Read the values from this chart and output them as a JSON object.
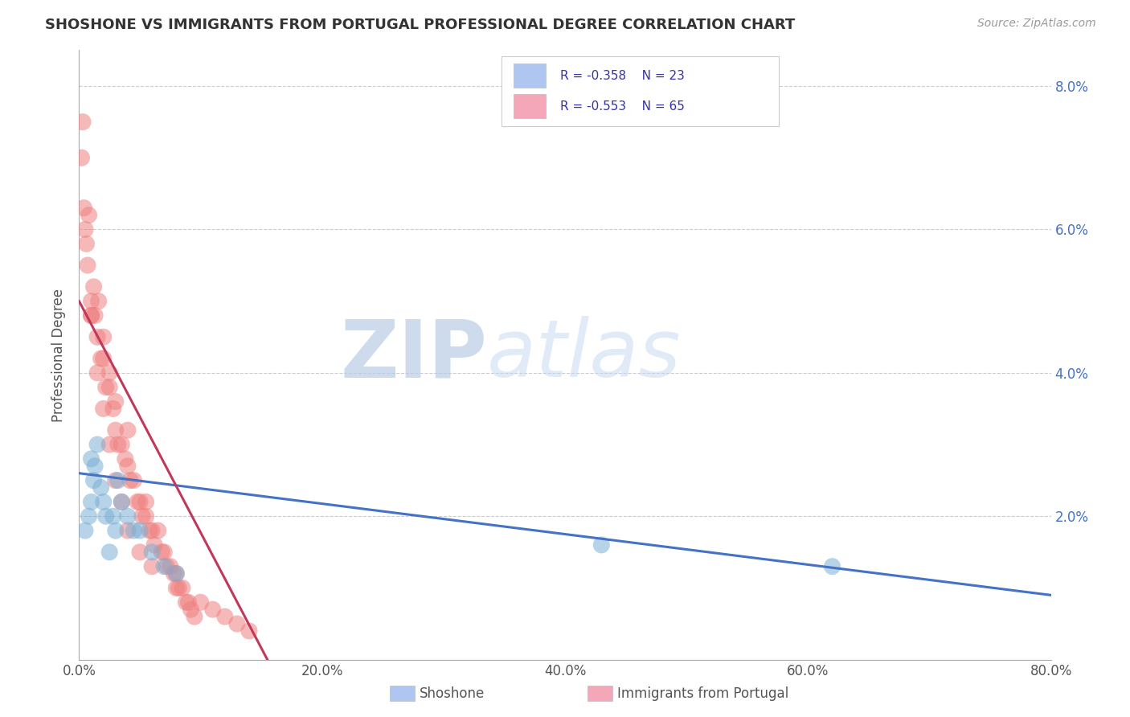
{
  "title": "SHOSHONE VS IMMIGRANTS FROM PORTUGAL PROFESSIONAL DEGREE CORRELATION CHART",
  "source": "Source: ZipAtlas.com",
  "ylabel": "Professional Degree",
  "xlim": [
    0.0,
    0.8
  ],
  "ylim": [
    0.0,
    0.085
  ],
  "xtick_labels": [
    "0.0%",
    "20.0%",
    "40.0%",
    "60.0%",
    "80.0%"
  ],
  "xtick_vals": [
    0.0,
    0.2,
    0.4,
    0.6,
    0.8
  ],
  "ytick_right_labels": [
    "8.0%",
    "6.0%",
    "4.0%",
    "2.0%",
    ""
  ],
  "ytick_vals": [
    0.0,
    0.02,
    0.04,
    0.06,
    0.08
  ],
  "legend_entry1_color": "#aec6f0",
  "legend_entry2_color": "#f4a7b9",
  "shoshone_color": "#7bafd4",
  "portugal_color": "#f08080",
  "shoshone_line_color": "#4472c4",
  "portugal_line_color": "#c0385a",
  "watermark_zip": "ZIP",
  "watermark_atlas": "atlas",
  "background_color": "#ffffff",
  "grid_color": "#cccccc",
  "shoshone_line_x0": 0.0,
  "shoshone_line_y0": 0.026,
  "shoshone_line_x1": 0.8,
  "shoshone_line_y1": 0.009,
  "portugal_line_x0": 0.0,
  "portugal_line_y0": 0.05,
  "portugal_line_x1": 0.155,
  "portugal_line_y1": 0.0,
  "shoshone_pts_x": [
    0.005,
    0.008,
    0.01,
    0.01,
    0.012,
    0.013,
    0.015,
    0.018,
    0.02,
    0.022,
    0.025,
    0.028,
    0.03,
    0.032,
    0.035,
    0.04,
    0.045,
    0.05,
    0.06,
    0.07,
    0.08,
    0.43,
    0.62
  ],
  "shoshone_pts_y": [
    0.018,
    0.02,
    0.028,
    0.022,
    0.025,
    0.027,
    0.03,
    0.024,
    0.022,
    0.02,
    0.015,
    0.02,
    0.018,
    0.025,
    0.022,
    0.02,
    0.018,
    0.018,
    0.015,
    0.013,
    0.012,
    0.016,
    0.013
  ],
  "portugal_pts_x": [
    0.002,
    0.003,
    0.004,
    0.005,
    0.006,
    0.007,
    0.008,
    0.01,
    0.01,
    0.012,
    0.013,
    0.015,
    0.016,
    0.018,
    0.02,
    0.02,
    0.022,
    0.025,
    0.025,
    0.028,
    0.03,
    0.03,
    0.032,
    0.035,
    0.038,
    0.04,
    0.04,
    0.042,
    0.045,
    0.048,
    0.05,
    0.052,
    0.055,
    0.055,
    0.058,
    0.06,
    0.062,
    0.065,
    0.068,
    0.07,
    0.072,
    0.075,
    0.078,
    0.08,
    0.082,
    0.085,
    0.088,
    0.09,
    0.092,
    0.095,
    0.01,
    0.015,
    0.02,
    0.025,
    0.03,
    0.035,
    0.04,
    0.05,
    0.06,
    0.08,
    0.1,
    0.11,
    0.12,
    0.13,
    0.14
  ],
  "portugal_pts_y": [
    0.07,
    0.075,
    0.063,
    0.06,
    0.058,
    0.055,
    0.062,
    0.05,
    0.048,
    0.052,
    0.048,
    0.045,
    0.05,
    0.042,
    0.042,
    0.045,
    0.038,
    0.04,
    0.038,
    0.035,
    0.032,
    0.036,
    0.03,
    0.03,
    0.028,
    0.027,
    0.032,
    0.025,
    0.025,
    0.022,
    0.022,
    0.02,
    0.02,
    0.022,
    0.018,
    0.018,
    0.016,
    0.018,
    0.015,
    0.015,
    0.013,
    0.013,
    0.012,
    0.012,
    0.01,
    0.01,
    0.008,
    0.008,
    0.007,
    0.006,
    0.048,
    0.04,
    0.035,
    0.03,
    0.025,
    0.022,
    0.018,
    0.015,
    0.013,
    0.01,
    0.008,
    0.007,
    0.006,
    0.005,
    0.004
  ]
}
